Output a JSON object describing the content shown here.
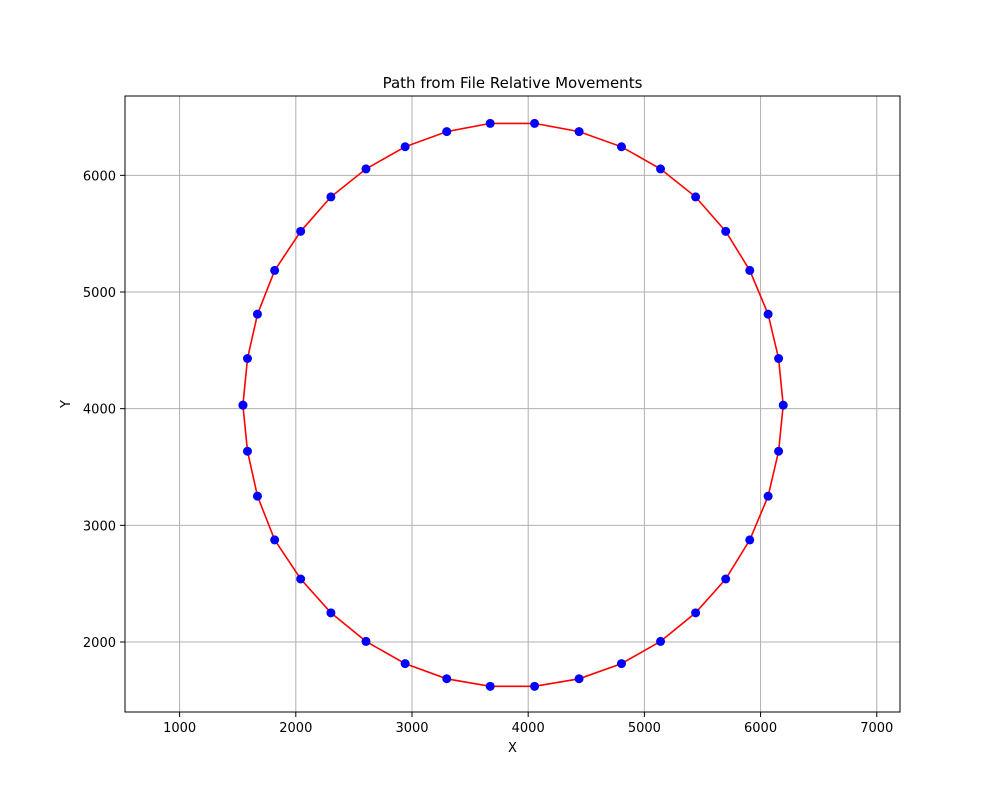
{
  "chart_data": {
    "type": "line",
    "title": "Path from File Relative Movements",
    "xlabel": "X",
    "ylabel": "Y",
    "xlim": [
      530,
      7200
    ],
    "ylim": [
      1400,
      6680
    ],
    "xticks": [
      1000,
      2000,
      3000,
      4000,
      5000,
      6000,
      7000
    ],
    "yticks": [
      2000,
      3000,
      4000,
      5000,
      6000
    ],
    "grid": true,
    "line_color": "#ff0000",
    "marker_color": "#0000ff",
    "axes_color": "#000000",
    "grid_color": "#b0b0b0",
    "series": [
      {
        "x": [
          1545,
          1584,
          1670,
          1818,
          2042,
          2302,
          2604,
          2941,
          3299,
          3673,
          4055,
          4438,
          4803,
          5139,
          5441,
          5700,
          5907,
          6065,
          6155,
          6195,
          6155,
          6065,
          5907,
          5700,
          5441,
          5139,
          4803,
          4438,
          4055,
          3673,
          3299,
          2941,
          2604,
          2302,
          2042,
          1818,
          1670,
          1584,
          1545
        ],
        "y": [
          4030,
          4430,
          4810,
          5185,
          5520,
          5815,
          6055,
          6245,
          6375,
          6445,
          6445,
          6375,
          6245,
          6055,
          5815,
          5520,
          5185,
          4810,
          4430,
          4030,
          3635,
          3250,
          2875,
          2540,
          2250,
          2005,
          1815,
          1685,
          1620,
          1620,
          1685,
          1815,
          2005,
          2250,
          2540,
          2875,
          3250,
          3635,
          4030
        ]
      }
    ]
  }
}
